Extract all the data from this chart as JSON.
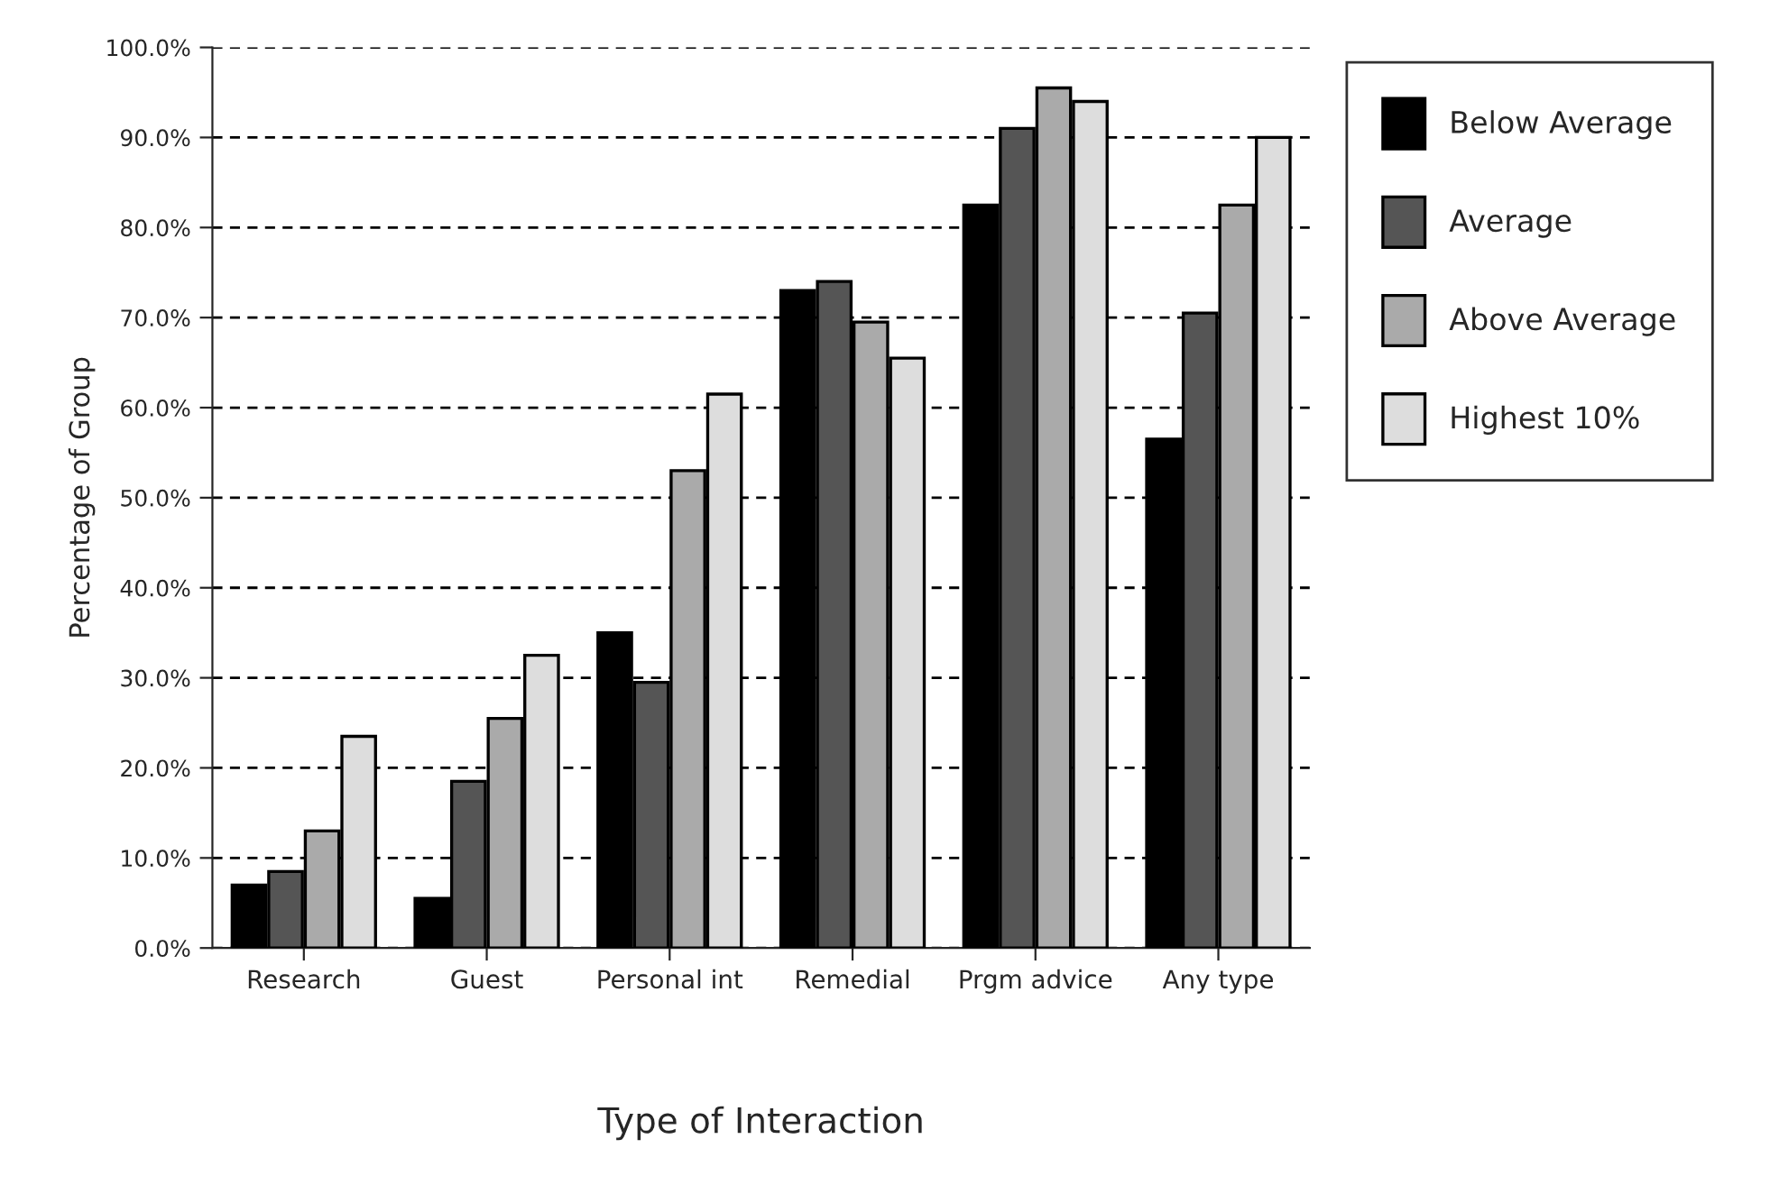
{
  "chart_data": {
    "type": "bar",
    "xlabel": "Type of Interaction",
    "ylabel": "Percentage of Group",
    "categories": [
      "Research",
      "Guest",
      "Personal int",
      "Remedial",
      "Prgm advice",
      "Any type"
    ],
    "series": [
      {
        "name": "Below Average",
        "color": "#000000",
        "values": [
          7,
          5.5,
          35,
          73,
          82.5,
          56.5
        ]
      },
      {
        "name": "Average",
        "color": "#555555",
        "values": [
          8.5,
          18.5,
          29.5,
          74,
          91,
          70.5
        ]
      },
      {
        "name": "Above Average",
        "color": "#aaaaaa",
        "values": [
          13,
          25.5,
          53,
          69.5,
          95.5,
          82.5
        ]
      },
      {
        "name": "Highest 10%",
        "color": "#dddddd",
        "values": [
          23.5,
          32.5,
          61.5,
          65.5,
          94,
          90
        ]
      }
    ],
    "ylim": [
      0,
      100
    ],
    "yticks": [
      {
        "value": 0,
        "label": "0.0%"
      },
      {
        "value": 10,
        "label": "10.0%"
      },
      {
        "value": 20,
        "label": "20.0%"
      },
      {
        "value": 30,
        "label": "30.0%"
      },
      {
        "value": 40,
        "label": "40.0%"
      },
      {
        "value": 50,
        "label": "50.0%"
      },
      {
        "value": 60,
        "label": "60.0%"
      },
      {
        "value": 70,
        "label": "70.0%"
      },
      {
        "value": 80,
        "label": "80.0%"
      },
      {
        "value": 90,
        "label": "90.0%"
      },
      {
        "value": 100,
        "label": "100.0%"
      }
    ],
    "grid": "y",
    "legend": "top right"
  }
}
